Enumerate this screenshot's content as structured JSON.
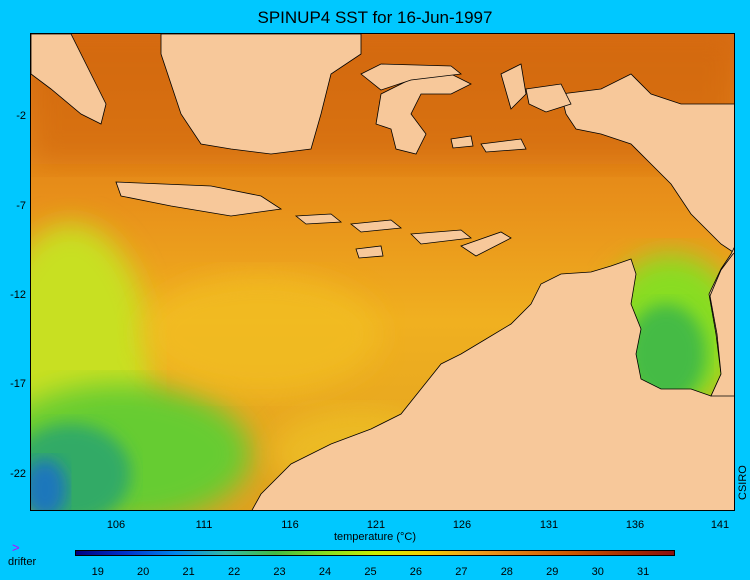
{
  "title": "SPINUP4 SST for 16-Jun-1997",
  "credit": "CSIRO",
  "map": {
    "y_axis_labels": [
      "-2",
      "-7",
      "-12",
      "-17",
      "-22"
    ],
    "x_axis_labels": [
      "106",
      "111",
      "116",
      "121",
      "126",
      "131",
      "136",
      "141"
    ],
    "land_color": "#f7c89a",
    "coastline_color": "#000000"
  },
  "colorbar": {
    "title": "temperature (°C)",
    "tick_labels": [
      "19",
      "20",
      "21",
      "22",
      "23",
      "24",
      "25",
      "26",
      "27",
      "28",
      "29",
      "30",
      "31"
    ],
    "range": [
      18.5,
      31.7
    ],
    "colors": [
      "#000080",
      "#0033cc",
      "#0088ee",
      "#33bbaa",
      "#44bb44",
      "#88dd22",
      "#ccee00",
      "#f4d000",
      "#f0a020",
      "#e07810",
      "#cc5500",
      "#a83000",
      "#8a1010"
    ]
  },
  "legend": {
    "marker": ">",
    "label": "drifter",
    "marker_color": "#c000ff"
  }
}
